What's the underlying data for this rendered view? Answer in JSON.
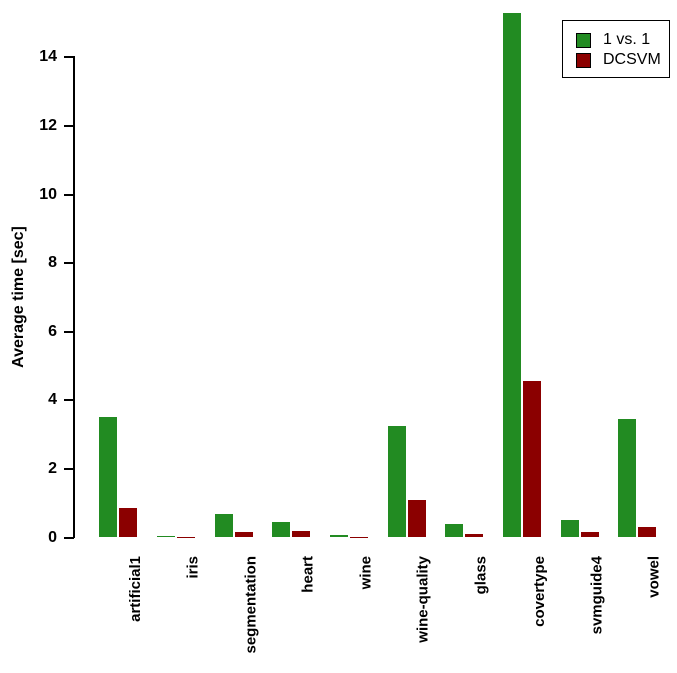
{
  "chart_data": {
    "type": "bar",
    "title": "",
    "ylabel": "Average time [sec]",
    "xlabel": "",
    "ylim": [
      0,
      15.5
    ],
    "yticks": [
      0,
      2,
      4,
      6,
      8,
      10,
      12,
      14
    ],
    "grid": false,
    "legend_position": "top-right",
    "categories": [
      "artificial1",
      "iris",
      "segmentation",
      "heart",
      "wine",
      "wine-quality",
      "glass",
      "covertype",
      "svmguide4",
      "vowel"
    ],
    "series": [
      {
        "name": "1 vs. 1",
        "color": "#228B22",
        "values": [
          3.5,
          0.03,
          0.68,
          0.46,
          0.07,
          3.25,
          0.39,
          15.3,
          0.51,
          3.45
        ]
      },
      {
        "name": "DCSVM",
        "color": "#8B0000",
        "values": [
          0.85,
          0.01,
          0.15,
          0.2,
          0.02,
          1.1,
          0.1,
          4.55,
          0.15,
          0.3
        ]
      }
    ]
  }
}
